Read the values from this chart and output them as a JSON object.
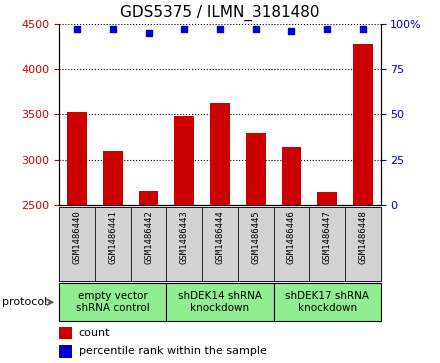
{
  "title": "GDS5375 / ILMN_3181480",
  "samples": [
    "GSM1486440",
    "GSM1486441",
    "GSM1486442",
    "GSM1486443",
    "GSM1486444",
    "GSM1486445",
    "GSM1486446",
    "GSM1486447",
    "GSM1486448"
  ],
  "counts": [
    3530,
    3100,
    2660,
    3480,
    3630,
    3290,
    3140,
    2640,
    4270
  ],
  "percentile_ranks": [
    97,
    97,
    95,
    97,
    97,
    97,
    96,
    97,
    97
  ],
  "ylim_left": [
    2500,
    4500
  ],
  "ylim_right": [
    0,
    100
  ],
  "yticks_left": [
    2500,
    3000,
    3500,
    4000,
    4500
  ],
  "yticks_right": [
    0,
    25,
    50,
    75,
    100
  ],
  "bar_color": "#cc0000",
  "dot_color": "#0000cc",
  "bar_width": 0.55,
  "groups": [
    {
      "label": "empty vector\nshRNA control",
      "start": 0,
      "end": 3,
      "color": "#90ee90"
    },
    {
      "label": "shDEK14 shRNA\nknockdown",
      "start": 3,
      "end": 6,
      "color": "#90ee90"
    },
    {
      "label": "shDEK17 shRNA\nknockdown",
      "start": 6,
      "end": 9,
      "color": "#90ee90"
    }
  ],
  "protocol_label": "protocol",
  "legend_count_label": "count",
  "legend_pct_label": "percentile rank within the sample",
  "title_fontsize": 11,
  "axis_tick_color_left": "#cc0000",
  "axis_tick_color_right": "#0000cc",
  "sample_box_color": "#d3d3d3",
  "fig_width": 4.4,
  "fig_height": 3.63,
  "dpi": 100
}
